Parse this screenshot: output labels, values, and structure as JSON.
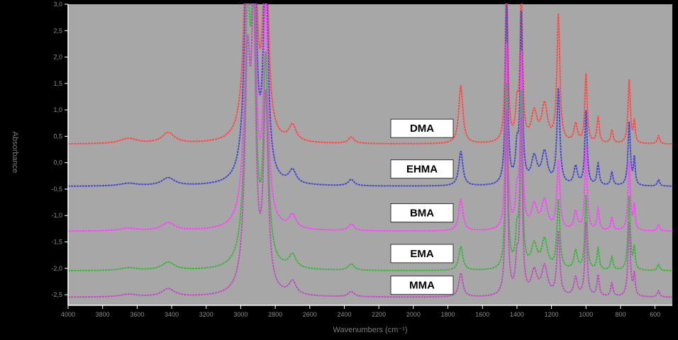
{
  "chart_data": {
    "type": "line",
    "xlabel": "Wavenumbers (cm⁻¹)",
    "ylabel": "Absorbance",
    "xlim": [
      4000,
      500
    ],
    "ylim": [
      -2.7,
      3.0
    ],
    "x_ticks": [
      4000,
      3800,
      3600,
      3400,
      3200,
      3000,
      2800,
      2600,
      2400,
      2200,
      2000,
      1800,
      1600,
      1400,
      1200,
      1000,
      800,
      600
    ],
    "x_tick_labels": [
      "4000",
      "3800",
      "3600",
      "3400",
      "3200",
      "3000",
      "2800",
      "2600",
      "2400",
      "2200",
      "2000",
      "1800",
      "1600",
      "1400",
      "1200",
      "1000",
      "800",
      "600"
    ],
    "y_ticks": [
      3.0,
      2.5,
      2.0,
      1.5,
      1.0,
      0.5,
      0.0,
      -0.5,
      -1.0,
      -1.5,
      -2.0,
      -2.5
    ],
    "y_tick_labels": [
      "3,0",
      "2,5",
      "2,0",
      "1,5",
      "1,0",
      "0,5",
      "0,0",
      "-0,5",
      "-1,0",
      "-1,5",
      "-2,0",
      "-2,5"
    ],
    "grid": false,
    "series": [
      {
        "name": "DMA",
        "color": "#ff4a4a",
        "baseline": 0.35,
        "peaks": [
          [
            3650,
            0.1,
            60
          ],
          [
            3420,
            0.2,
            45
          ],
          [
            2960,
            4.5,
            20
          ],
          [
            2925,
            5.5,
            14
          ],
          [
            2855,
            4.2,
            16
          ],
          [
            2700,
            0.3,
            25
          ],
          [
            2360,
            0.12,
            20
          ],
          [
            1725,
            1.1,
            14
          ],
          [
            1460,
            3.5,
            8
          ],
          [
            1400,
            0.6,
            10
          ],
          [
            1375,
            3.0,
            8
          ],
          [
            1300,
            0.55,
            20
          ],
          [
            1240,
            0.7,
            20
          ],
          [
            1160,
            2.4,
            10
          ],
          [
            1060,
            0.35,
            12
          ],
          [
            1000,
            1.3,
            8
          ],
          [
            930,
            0.5,
            8
          ],
          [
            850,
            0.25,
            8
          ],
          [
            750,
            1.2,
            8
          ],
          [
            720,
            0.4,
            6
          ],
          [
            580,
            0.15,
            8
          ]
        ]
      },
      {
        "name": "EHMA",
        "color": "#4848d0",
        "baseline": -0.45,
        "peaks": [
          [
            3650,
            0.05,
            60
          ],
          [
            3420,
            0.15,
            45
          ],
          [
            2960,
            4.5,
            20
          ],
          [
            2925,
            5.2,
            14
          ],
          [
            2855,
            4.0,
            16
          ],
          [
            2700,
            0.25,
            25
          ],
          [
            2360,
            0.12,
            20
          ],
          [
            1725,
            0.65,
            14
          ],
          [
            1460,
            3.5,
            8
          ],
          [
            1400,
            0.6,
            10
          ],
          [
            1375,
            3.2,
            8
          ],
          [
            1300,
            0.5,
            20
          ],
          [
            1240,
            0.6,
            20
          ],
          [
            1160,
            1.8,
            10
          ],
          [
            1060,
            0.35,
            12
          ],
          [
            1000,
            1.4,
            8
          ],
          [
            930,
            0.4,
            8
          ],
          [
            850,
            0.25,
            8
          ],
          [
            750,
            1.2,
            8
          ],
          [
            720,
            0.5,
            6
          ],
          [
            580,
            0.12,
            8
          ]
        ]
      },
      {
        "name": "BMA",
        "color": "#ff44ff",
        "baseline": -1.3,
        "peaks": [
          [
            3650,
            0.05,
            60
          ],
          [
            3420,
            0.15,
            45
          ],
          [
            2960,
            4.5,
            20
          ],
          [
            2925,
            5.2,
            14
          ],
          [
            2855,
            4.0,
            16
          ],
          [
            2700,
            0.25,
            25
          ],
          [
            2360,
            0.12,
            20
          ],
          [
            1725,
            0.6,
            14
          ],
          [
            1460,
            3.5,
            8
          ],
          [
            1400,
            0.6,
            10
          ],
          [
            1375,
            3.3,
            8
          ],
          [
            1300,
            0.45,
            20
          ],
          [
            1240,
            0.55,
            20
          ],
          [
            1160,
            1.3,
            10
          ],
          [
            1060,
            0.35,
            12
          ],
          [
            1000,
            1.6,
            8
          ],
          [
            930,
            0.4,
            8
          ],
          [
            850,
            0.25,
            8
          ],
          [
            750,
            1.3,
            8
          ],
          [
            720,
            0.45,
            6
          ],
          [
            580,
            0.12,
            8
          ]
        ]
      },
      {
        "name": "EMA",
        "color": "#3fb43f",
        "baseline": -2.05,
        "peaks": [
          [
            3650,
            0.05,
            60
          ],
          [
            3420,
            0.15,
            45
          ],
          [
            2960,
            4.5,
            20
          ],
          [
            2925,
            5.0,
            14
          ],
          [
            2855,
            3.8,
            16
          ],
          [
            2700,
            0.25,
            25
          ],
          [
            2360,
            0.12,
            20
          ],
          [
            1725,
            0.45,
            14
          ],
          [
            1460,
            3.5,
            8
          ],
          [
            1400,
            0.6,
            10
          ],
          [
            1375,
            3.3,
            8
          ],
          [
            1300,
            0.45,
            20
          ],
          [
            1240,
            0.55,
            20
          ],
          [
            1160,
            1.3,
            10
          ],
          [
            1060,
            0.35,
            12
          ],
          [
            1000,
            1.4,
            8
          ],
          [
            930,
            0.4,
            8
          ],
          [
            850,
            0.25,
            8
          ],
          [
            750,
            1.4,
            8
          ],
          [
            720,
            0.4,
            6
          ],
          [
            580,
            0.12,
            8
          ]
        ]
      },
      {
        "name": "MMA",
        "color": "#c050c0",
        "baseline": -2.55,
        "peaks": [
          [
            3650,
            0.05,
            60
          ],
          [
            3420,
            0.15,
            45
          ],
          [
            2960,
            4.2,
            20
          ],
          [
            2925,
            4.8,
            14
          ],
          [
            2855,
            3.6,
            16
          ],
          [
            2700,
            0.25,
            25
          ],
          [
            2360,
            0.1,
            20
          ],
          [
            1725,
            0.45,
            14
          ],
          [
            1460,
            3.5,
            8
          ],
          [
            1400,
            0.6,
            10
          ],
          [
            1375,
            3.3,
            8
          ],
          [
            1300,
            0.45,
            20
          ],
          [
            1240,
            0.55,
            20
          ],
          [
            1160,
            1.2,
            10
          ],
          [
            1060,
            0.35,
            12
          ],
          [
            1000,
            1.4,
            8
          ],
          [
            930,
            0.4,
            8
          ],
          [
            850,
            0.25,
            8
          ],
          [
            750,
            1.4,
            8
          ],
          [
            720,
            0.4,
            6
          ],
          [
            580,
            0.12,
            8
          ]
        ]
      }
    ],
    "labels": [
      {
        "text": "DMA",
        "x": 1950,
        "y": 0.65
      },
      {
        "text": "EHMA",
        "x": 1950,
        "y": -0.12
      },
      {
        "text": "BMA",
        "x": 1950,
        "y": -0.95
      },
      {
        "text": "EMA",
        "x": 1950,
        "y": -1.72
      },
      {
        "text": "MMA",
        "x": 1950,
        "y": -2.32
      }
    ]
  },
  "colors": {
    "background": "#000000",
    "plot_area": "#a7a7a7",
    "axis": "#ffffff",
    "tick_text": "#8a8a8a"
  }
}
